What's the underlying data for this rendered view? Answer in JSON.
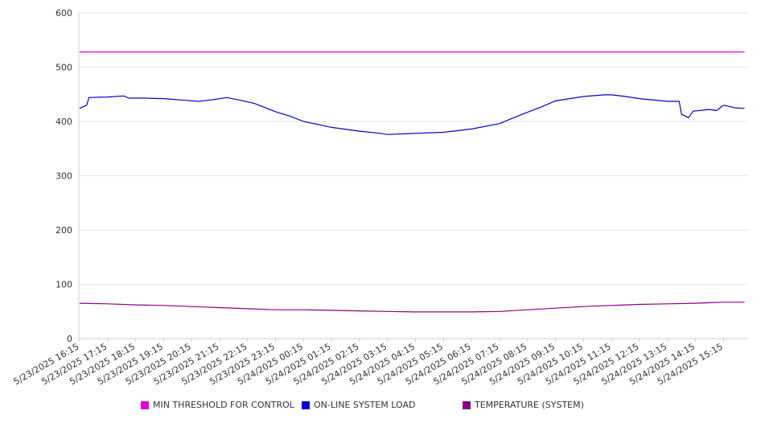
{
  "chart_data": {
    "type": "line",
    "title": "",
    "xlabel": "",
    "ylabel": "",
    "ylim": [
      0,
      600
    ],
    "yticks": [
      "0",
      "100",
      "200",
      "300",
      "400",
      "500",
      "600"
    ],
    "grid": true,
    "legend_position": "bottom",
    "x_tick_labels": [
      "5/23/2025 16:15",
      "5/23/2025 17:15",
      "5/23/2025 18:15",
      "5/23/2025 19:15",
      "5/23/2025 20:15",
      "5/23/2025 21:15",
      "5/23/2025 22:15",
      "5/23/2025 23:15",
      "5/24/2025 00:15",
      "5/24/2025 01:15",
      "5/24/2025 02:15",
      "5/24/2025 03:15",
      "5/24/2025 04:15",
      "5/24/2025 05:15",
      "5/24/2025 06:15",
      "5/24/2025 07:15",
      "5/24/2025 08:15",
      "5/24/2025 09:15",
      "5/24/2025 10:15",
      "5/24/2025 11:15",
      "5/24/2025 12:15",
      "5/24/2025 13:15",
      "5/24/2025 14:15",
      "5/24/2025 15:15"
    ],
    "x_end": "5/24/2025 16:00",
    "series": [
      {
        "name": "MIN THRESHOLD FOR CONTROL",
        "color": "#dd00dd",
        "points": [
          [
            "5/23/2025 16:15",
            528
          ],
          [
            "5/24/2025 16:00",
            528
          ]
        ]
      },
      {
        "name": "ON-LINE SYSTEM LOAD",
        "color": "#0000cc",
        "points": [
          [
            "5/23/2025 16:15",
            424
          ],
          [
            "5/23/2025 16:30",
            430
          ],
          [
            "5/23/2025 16:35",
            444
          ],
          [
            "5/23/2025 17:15",
            445
          ],
          [
            "5/23/2025 17:50",
            447
          ],
          [
            "5/23/2025 18:00",
            443
          ],
          [
            "5/23/2025 18:30",
            443
          ],
          [
            "5/23/2025 19:15",
            442
          ],
          [
            "5/23/2025 20:00",
            439
          ],
          [
            "5/23/2025 20:30",
            437
          ],
          [
            "5/23/2025 21:00",
            440
          ],
          [
            "5/23/2025 21:30",
            444
          ],
          [
            "5/23/2025 22:00",
            439
          ],
          [
            "5/23/2025 22:30",
            433
          ],
          [
            "5/23/2025 23:15",
            418
          ],
          [
            "5/23/2025 23:45",
            410
          ],
          [
            "5/24/2025 00:15",
            400
          ],
          [
            "5/24/2025 01:15",
            389
          ],
          [
            "5/24/2025 02:15",
            382
          ],
          [
            "5/24/2025 03:00",
            378
          ],
          [
            "5/24/2025 03:15",
            376
          ],
          [
            "5/24/2025 04:15",
            378
          ],
          [
            "5/24/2025 05:15",
            380
          ],
          [
            "5/24/2025 06:15",
            386
          ],
          [
            "5/24/2025 07:15",
            396
          ],
          [
            "5/24/2025 08:00",
            412
          ],
          [
            "5/24/2025 08:45",
            427
          ],
          [
            "5/24/2025 09:15",
            438
          ],
          [
            "5/24/2025 10:15",
            446
          ],
          [
            "5/24/2025 11:00",
            449
          ],
          [
            "5/24/2025 11:15",
            449
          ],
          [
            "5/24/2025 11:45",
            446
          ],
          [
            "5/24/2025 12:15",
            442
          ],
          [
            "5/24/2025 13:15",
            437
          ],
          [
            "5/24/2025 13:40",
            437
          ],
          [
            "5/24/2025 13:45",
            413
          ],
          [
            "5/24/2025 14:00",
            407
          ],
          [
            "5/24/2025 14:10",
            419
          ],
          [
            "5/24/2025 14:45",
            422
          ],
          [
            "5/24/2025 15:00",
            420
          ],
          [
            "5/24/2025 15:15",
            430
          ],
          [
            "5/24/2025 15:40",
            425
          ],
          [
            "5/24/2025 16:00",
            424
          ]
        ]
      },
      {
        "name": "TEMPERATURE (SYSTEM)",
        "color": "#880088",
        "points": [
          [
            "5/23/2025 16:15",
            65
          ],
          [
            "5/23/2025 17:15",
            64
          ],
          [
            "5/23/2025 18:15",
            62
          ],
          [
            "5/23/2025 19:15",
            61
          ],
          [
            "5/23/2025 20:15",
            59
          ],
          [
            "5/23/2025 21:15",
            57
          ],
          [
            "5/23/2025 22:15",
            55
          ],
          [
            "5/23/2025 23:15",
            53
          ],
          [
            "5/24/2025 00:15",
            53
          ],
          [
            "5/24/2025 01:15",
            52
          ],
          [
            "5/24/2025 02:15",
            51
          ],
          [
            "5/24/2025 03:15",
            50
          ],
          [
            "5/24/2025 04:15",
            49
          ],
          [
            "5/24/2025 05:15",
            49
          ],
          [
            "5/24/2025 06:15",
            49
          ],
          [
            "5/24/2025 07:15",
            50
          ],
          [
            "5/24/2025 08:15",
            53
          ],
          [
            "5/24/2025 09:15",
            56
          ],
          [
            "5/24/2025 10:15",
            59
          ],
          [
            "5/24/2025 11:15",
            61
          ],
          [
            "5/24/2025 12:15",
            63
          ],
          [
            "5/24/2025 13:15",
            64
          ],
          [
            "5/24/2025 14:15",
            65
          ],
          [
            "5/24/2025 15:15",
            67
          ],
          [
            "5/24/2025 16:00",
            67
          ]
        ]
      }
    ]
  }
}
